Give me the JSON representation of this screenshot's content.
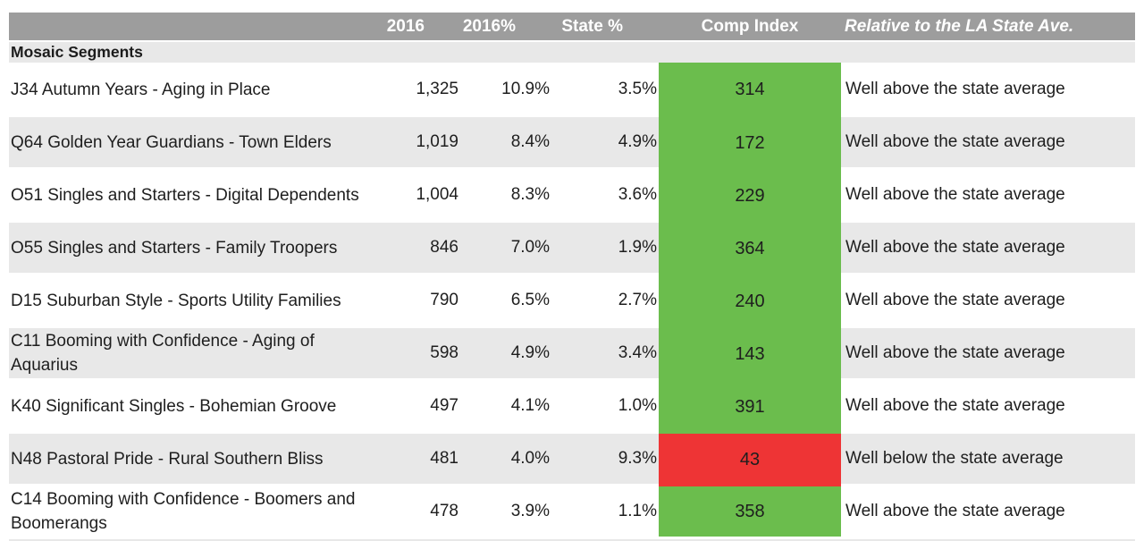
{
  "header": {
    "cols": {
      "count": "2016",
      "pct": "2016%",
      "state_pct": "State %",
      "comp_index": "Comp Index",
      "relative": "Relative to the LA State Ave."
    }
  },
  "section_label": "Mosaic Segments",
  "rows": [
    {
      "name": "J34 Autumn Years - Aging in Place",
      "count_2016": "1,325",
      "pct_2016": "10.9%",
      "state_pct": "3.5%",
      "comp_index": "314",
      "relative": "Well above the state average",
      "status": "above"
    },
    {
      "name": "Q64 Golden Year Guardians - Town Elders",
      "count_2016": "1,019",
      "pct_2016": "8.4%",
      "state_pct": "4.9%",
      "comp_index": "172",
      "relative": "Well above the state average",
      "status": "above"
    },
    {
      "name": "O51 Singles and Starters - Digital Dependents",
      "count_2016": "1,004",
      "pct_2016": "8.3%",
      "state_pct": "3.6%",
      "comp_index": "229",
      "relative": "Well above the state average",
      "status": "above"
    },
    {
      "name": "O55 Singles and Starters - Family Troopers",
      "count_2016": "846",
      "pct_2016": "7.0%",
      "state_pct": "1.9%",
      "comp_index": "364",
      "relative": "Well above the state average",
      "status": "above"
    },
    {
      "name": "D15 Suburban Style - Sports Utility Families",
      "count_2016": "790",
      "pct_2016": "6.5%",
      "state_pct": "2.7%",
      "comp_index": "240",
      "relative": "Well above the state average",
      "status": "above"
    },
    {
      "name": "C11 Booming with Confidence - Aging of Aquarius",
      "count_2016": "598",
      "pct_2016": "4.9%",
      "state_pct": "3.4%",
      "comp_index": "143",
      "relative": "Well above the state average",
      "status": "above"
    },
    {
      "name": "K40 Significant Singles - Bohemian Groove",
      "count_2016": "497",
      "pct_2016": "4.1%",
      "state_pct": "1.0%",
      "comp_index": "391",
      "relative": "Well above the state average",
      "status": "above"
    },
    {
      "name": "N48 Pastoral Pride - Rural Southern Bliss",
      "count_2016": "481",
      "pct_2016": "4.0%",
      "state_pct": "9.3%",
      "comp_index": "43",
      "relative": "Well below the state average",
      "status": "below"
    },
    {
      "name": "C14 Booming with Confidence - Boomers and Boomerangs",
      "count_2016": "478",
      "pct_2016": "3.9%",
      "state_pct": "1.1%",
      "comp_index": "358",
      "relative": "Well above the state average",
      "status": "above"
    }
  ],
  "colors": {
    "header_gray": "#9d9d9d",
    "row_gray": "#e8e8e8",
    "comp_green": "#6bbd4d",
    "comp_red": "#ee3435",
    "header_text": "#ffffff",
    "body_text": "#1e1e1e"
  }
}
